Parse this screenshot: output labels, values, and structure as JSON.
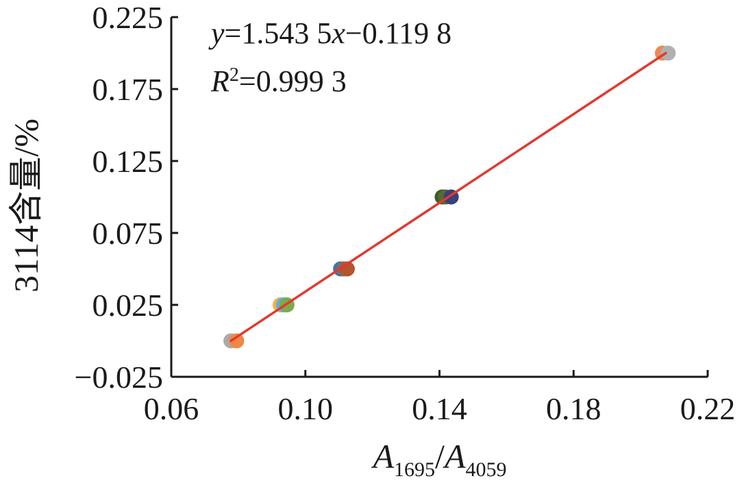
{
  "chart_data": {
    "type": "scatter",
    "xlabel": {
      "main1": "A",
      "sub1": "1695",
      "slash": "/",
      "main2": "A",
      "sub2": "4059"
    },
    "ylabel": "3114含量/%",
    "xlim": [
      0.06,
      0.22
    ],
    "ylim": [
      -0.025,
      0.225
    ],
    "x_ticks": [
      "0.06",
      "0.10",
      "0.14",
      "0.18",
      "0.22"
    ],
    "x_tick_values": [
      0.06,
      0.1,
      0.14,
      0.18,
      0.22
    ],
    "y_ticks": [
      "−0.025",
      "0.025",
      "0.075",
      "0.125",
      "0.175",
      "0.225"
    ],
    "y_tick_values": [
      -0.025,
      0.025,
      0.075,
      0.125,
      0.175,
      0.225
    ],
    "grid": false,
    "points": [
      {
        "x": 0.0778,
        "y": 0.0,
        "color": "#aaaaaa"
      },
      {
        "x": 0.0795,
        "y": 0.0,
        "color": "#ee8844"
      },
      {
        "x": 0.0925,
        "y": 0.025,
        "color": "#f5b041"
      },
      {
        "x": 0.0935,
        "y": 0.025,
        "color": "#5dade2"
      },
      {
        "x": 0.0945,
        "y": 0.025,
        "color": "#7daa4a"
      },
      {
        "x": 0.1105,
        "y": 0.05,
        "color": "#4a6fa5"
      },
      {
        "x": 0.1115,
        "y": 0.05,
        "color": "#707070"
      },
      {
        "x": 0.1125,
        "y": 0.05,
        "color": "#b5542e"
      },
      {
        "x": 0.1408,
        "y": 0.1,
        "color": "#3d5c2a"
      },
      {
        "x": 0.1418,
        "y": 0.1,
        "color": "#556b2f"
      },
      {
        "x": 0.1435,
        "y": 0.1,
        "color": "#3b3f7a"
      },
      {
        "x": 0.2065,
        "y": 0.2,
        "color": "#ee8855"
      },
      {
        "x": 0.2082,
        "y": 0.2,
        "color": "#b0b0b0"
      }
    ],
    "fit_line": {
      "x": [
        0.0778,
        0.2075
      ],
      "y": [
        0.0,
        0.2
      ],
      "color": "#e03a2e"
    },
    "annotations": {
      "equation": {
        "y": "y",
        "eq1": "=1.543 5",
        "x": "x",
        "eq2": "−0.119 8"
      },
      "r2": {
        "r": "R",
        "sup": "2",
        "eq": "=0.999 3"
      }
    }
  }
}
